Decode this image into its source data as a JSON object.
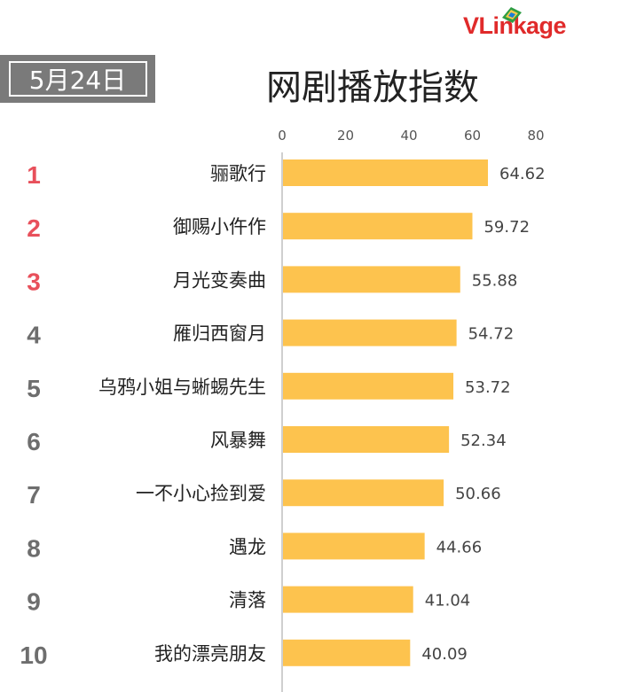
{
  "header": {
    "date": "5月24日",
    "title": "网剧播放指数",
    "logo": {
      "text_strong": "VLink",
      "text_rest": "age",
      "icon": "kite-icon"
    }
  },
  "colors": {
    "bar": "#FDC34E",
    "rank_top": "#E8505B",
    "rank_other": "#6E6E6E",
    "axis": "#BFBFBF",
    "tick": "#555555",
    "label": "#222222",
    "value": "#444444"
  },
  "chart_data": {
    "type": "bar",
    "orientation": "horizontal",
    "title": "网剧播放指数",
    "xlim": [
      0,
      80
    ],
    "xticks": [
      0,
      20,
      40,
      60,
      80
    ],
    "ranks": [
      "1",
      "2",
      "3",
      "4",
      "5",
      "6",
      "7",
      "8",
      "9",
      "10"
    ],
    "categories": [
      "骊歌行",
      "御赐小仵作",
      "月光变奏曲",
      "雁归西窗月",
      "乌鸦小姐与蜥蜴先生",
      "风暴舞",
      "一不小心捡到爱",
      "遇龙",
      "清落",
      "我的漂亮朋友"
    ],
    "values": [
      64.62,
      59.72,
      55.88,
      54.72,
      53.72,
      52.34,
      50.66,
      44.66,
      41.04,
      40.09
    ],
    "value_labels": [
      "64.62",
      "59.72",
      "55.88",
      "54.72",
      "53.72",
      "52.34",
      "50.66",
      "44.66",
      "41.04",
      "40.09"
    ],
    "grid": false,
    "legend": "none"
  }
}
